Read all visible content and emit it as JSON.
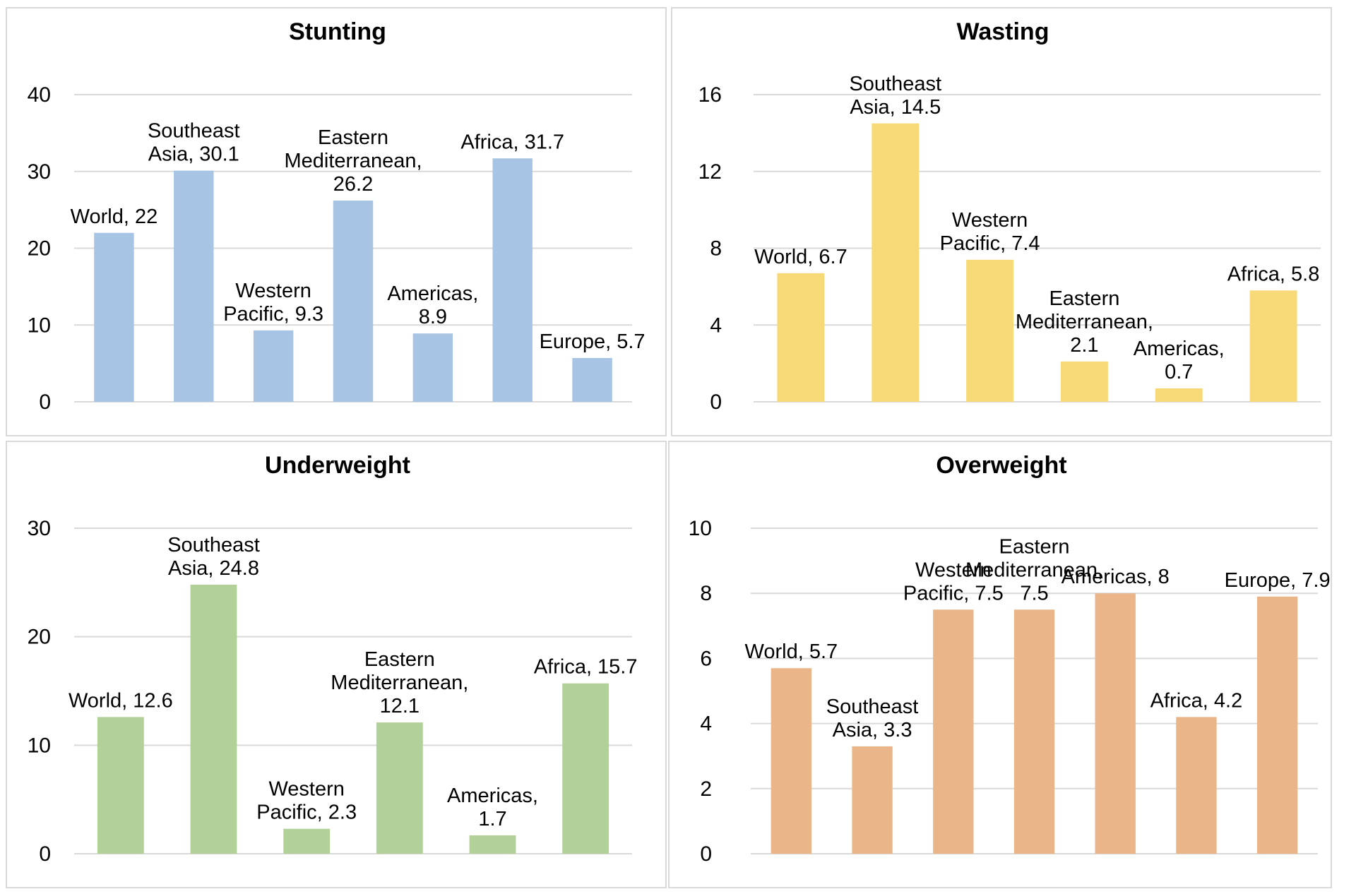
{
  "chart_data": [
    {
      "type": "bar",
      "title": "Stunting",
      "categories": [
        "World",
        "Southeast Asia",
        "Western Pacific",
        "Eastern Mediterranean",
        "Americas",
        "Africa",
        "Europe"
      ],
      "values": [
        22,
        30.1,
        9.3,
        26.2,
        8.9,
        31.7,
        5.7
      ],
      "labels": [
        [
          "World, 22"
        ],
        [
          "Southeast",
          "Asia, 30.1"
        ],
        [
          "Western",
          "Pacific, 9.3"
        ],
        [
          "Eastern",
          "Mediterranean,",
          "26.2"
        ],
        [
          "Americas,",
          "8.9"
        ],
        [
          "Africa, 31.7"
        ],
        [
          "Europe, 5.7"
        ]
      ],
      "yticks": [
        0,
        10,
        20,
        30,
        40
      ],
      "ylim": [
        0,
        40
      ],
      "color": "#a7c4e4",
      "grid": true,
      "legend": "none"
    },
    {
      "type": "bar",
      "title": "Wasting",
      "categories": [
        "World",
        "Southeast Asia",
        "Western Pacific",
        "Eastern Mediterranean",
        "Americas",
        "Africa"
      ],
      "values": [
        6.7,
        14.5,
        7.4,
        2.1,
        0.7,
        5.8
      ],
      "labels": [
        [
          "World, 6.7"
        ],
        [
          "Southeast",
          "Asia, 14.5"
        ],
        [
          "Western",
          "Pacific, 7.4"
        ],
        [
          "Eastern",
          "Mediterranean,",
          "2.1"
        ],
        [
          "Americas,",
          "0.7"
        ],
        [
          "Africa, 5.8"
        ]
      ],
      "yticks": [
        0,
        4,
        8,
        12,
        16
      ],
      "ylim": [
        0,
        16
      ],
      "color": "#f8d977",
      "grid": true,
      "legend": "none"
    },
    {
      "type": "bar",
      "title": "Underweight",
      "categories": [
        "World",
        "Southeast Asia",
        "Western Pacific",
        "Eastern Mediterranean",
        "Americas",
        "Africa"
      ],
      "values": [
        12.6,
        24.8,
        2.3,
        12.1,
        1.7,
        15.7
      ],
      "labels": [
        [
          "World, 12.6"
        ],
        [
          "Southeast",
          "Asia, 24.8"
        ],
        [
          "Western",
          "Pacific, 2.3"
        ],
        [
          "Eastern",
          "Mediterranean,",
          "12.1"
        ],
        [
          "Americas,",
          "1.7"
        ],
        [
          "Africa, 15.7"
        ]
      ],
      "yticks": [
        0,
        10,
        20,
        30
      ],
      "ylim": [
        0,
        30
      ],
      "color": "#b2d198",
      "grid": true,
      "legend": "none"
    },
    {
      "type": "bar",
      "title": "Overweight",
      "categories": [
        "World",
        "Southeast Asia",
        "Western Pacific",
        "Eastern Mediterranean",
        "Americas",
        "Africa",
        "Europe"
      ],
      "values": [
        5.7,
        3.3,
        7.5,
        7.5,
        8,
        4.2,
        7.9
      ],
      "labels": [
        [
          "World, 5.7"
        ],
        [
          "Southeast",
          "Asia, 3.3"
        ],
        [
          "Western",
          "Pacific, 7.5"
        ],
        [
          "Eastern",
          "Mediterranean,",
          "7.5"
        ],
        [
          "Americas, 8"
        ],
        [
          "Africa, 4.2"
        ],
        [
          "Europe, 7.9"
        ]
      ],
      "yticks": [
        0,
        2,
        4,
        6,
        8,
        10
      ],
      "ylim": [
        0,
        10
      ],
      "color": "#eab589",
      "grid": true,
      "legend": "none"
    }
  ]
}
